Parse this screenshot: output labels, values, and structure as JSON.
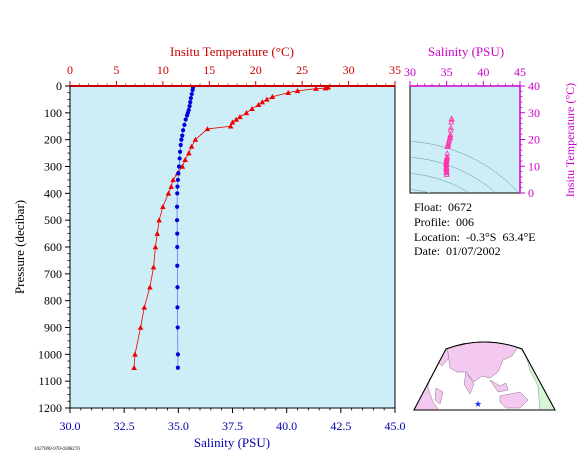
{
  "chart_data": [
    {
      "type": "line",
      "name": "main-profile",
      "top_axis": {
        "label": "Insitu Temperature (°C)",
        "range": [
          0,
          35
        ],
        "ticks": [
          0,
          5,
          10,
          15,
          20,
          25,
          30,
          35
        ],
        "color": "#cc0000"
      },
      "bottom_axis": {
        "label": "Salinity (PSU)",
        "range": [
          30.0,
          45.0
        ],
        "ticks": [
          "30.0",
          "32.5",
          "35.0",
          "37.5",
          "40.0",
          "42.5",
          "45.0"
        ],
        "color": "#0000aa"
      },
      "y_axis": {
        "label": "Pressure (decibar)",
        "range": [
          0,
          1200
        ],
        "inverted": true,
        "ticks": [
          0,
          100,
          200,
          300,
          400,
          500,
          600,
          700,
          800,
          900,
          1000,
          1100,
          1200
        ]
      },
      "series": [
        {
          "marker": "triangle",
          "color": "#ee0000",
          "points": [
            [
              27.8,
              5
            ],
            [
              27.5,
              8
            ],
            [
              26.5,
              10
            ],
            [
              24.5,
              18
            ],
            [
              23.5,
              25
            ],
            [
              21.8,
              40
            ],
            [
              21.2,
              50
            ],
            [
              20.7,
              60
            ],
            [
              20.3,
              70
            ],
            [
              19.6,
              85
            ],
            [
              19.0,
              100
            ],
            [
              18.3,
              115
            ],
            [
              17.9,
              125
            ],
            [
              17.5,
              135
            ],
            [
              17.3,
              150
            ],
            [
              14.8,
              160
            ],
            [
              13.5,
              200
            ],
            [
              13.1,
              225
            ],
            [
              12.8,
              250
            ],
            [
              12.4,
              275
            ],
            [
              12.1,
              300
            ],
            [
              11.6,
              325
            ],
            [
              11.1,
              350
            ],
            [
              10.9,
              375
            ],
            [
              10.6,
              400
            ],
            [
              10.0,
              450
            ],
            [
              9.6,
              500
            ],
            [
              9.4,
              550
            ],
            [
              9.2,
              600
            ],
            [
              9.0,
              675
            ],
            [
              8.6,
              750
            ],
            [
              8.0,
              825
            ],
            [
              7.6,
              900
            ],
            [
              7.0,
              1000
            ],
            [
              6.9,
              1050
            ]
          ]
        },
        {
          "marker": "circle",
          "color": "#0000dd",
          "points": [
            [
              35.68,
              5
            ],
            [
              35.66,
              15
            ],
            [
              35.62,
              30
            ],
            [
              35.58,
              45
            ],
            [
              35.55,
              60
            ],
            [
              35.52,
              75
            ],
            [
              35.48,
              90
            ],
            [
              35.44,
              100
            ],
            [
              35.4,
              110
            ],
            [
              35.34,
              125
            ],
            [
              35.28,
              145
            ],
            [
              35.22,
              165
            ],
            [
              35.18,
              185
            ],
            [
              35.14,
              200
            ],
            [
              35.11,
              220
            ],
            [
              35.08,
              245
            ],
            [
              35.06,
              270
            ],
            [
              35.03,
              300
            ],
            [
              35.0,
              325
            ],
            [
              34.98,
              350
            ],
            [
              34.96,
              375
            ],
            [
              34.95,
              400
            ],
            [
              34.94,
              450
            ],
            [
              34.94,
              500
            ],
            [
              34.95,
              550
            ],
            [
              34.95,
              600
            ],
            [
              34.95,
              670
            ],
            [
              34.96,
              750
            ],
            [
              34.96,
              825
            ],
            [
              34.97,
              900
            ],
            [
              34.98,
              1000
            ],
            [
              34.98,
              1050
            ]
          ]
        }
      ]
    },
    {
      "type": "scatter",
      "name": "ts-diagram",
      "top_axis": {
        "label": "Salinity (PSU)",
        "range": [
          30,
          45
        ],
        "ticks": [
          30,
          35,
          40,
          45
        ],
        "color": "#cc00cc"
      },
      "right_axis": {
        "label": "Insitu Temperature (°C)",
        "range": [
          0,
          40
        ],
        "ticks": [
          0,
          10,
          20,
          30,
          40
        ],
        "color": "#cc00cc"
      },
      "grid": "density contours",
      "marker": "triangle",
      "color": "#ff33aa",
      "points": [
        [
          35.68,
          27.8
        ],
        [
          35.66,
          27.5
        ],
        [
          35.62,
          26.5
        ],
        [
          35.58,
          24.5
        ],
        [
          35.55,
          23.5
        ],
        [
          35.52,
          21.8
        ],
        [
          35.48,
          21.2
        ],
        [
          35.44,
          20.7
        ],
        [
          35.4,
          20.3
        ],
        [
          35.34,
          19.6
        ],
        [
          35.28,
          19.0
        ],
        [
          35.22,
          18.3
        ],
        [
          35.18,
          17.9
        ],
        [
          35.14,
          17.5
        ],
        [
          35.11,
          17.3
        ],
        [
          35.08,
          14.8
        ],
        [
          35.06,
          13.5
        ],
        [
          35.03,
          13.1
        ],
        [
          35.0,
          12.8
        ],
        [
          34.98,
          12.4
        ],
        [
          34.96,
          12.1
        ],
        [
          34.95,
          11.6
        ],
        [
          34.94,
          11.1
        ],
        [
          34.94,
          10.9
        ],
        [
          34.95,
          10.6
        ],
        [
          34.95,
          10.0
        ],
        [
          34.95,
          9.6
        ],
        [
          34.96,
          9.4
        ],
        [
          34.96,
          9.2
        ],
        [
          34.97,
          9.0
        ],
        [
          34.98,
          8.6
        ],
        [
          34.98,
          8.0
        ],
        [
          34.99,
          7.6
        ],
        [
          35.0,
          7.0
        ],
        [
          35.0,
          6.9
        ]
      ]
    }
  ],
  "info": {
    "float": "Float:  0672",
    "profile": "Profile:  006",
    "location": "Location:  -0.3°S  63.4°E",
    "date": "Date:  01/07/2002"
  },
  "map": {
    "marker_lat": -0.3,
    "marker_lon": 63.4,
    "marker_color": "#2233ee"
  },
  "stamp": "1027000-970-0388276"
}
